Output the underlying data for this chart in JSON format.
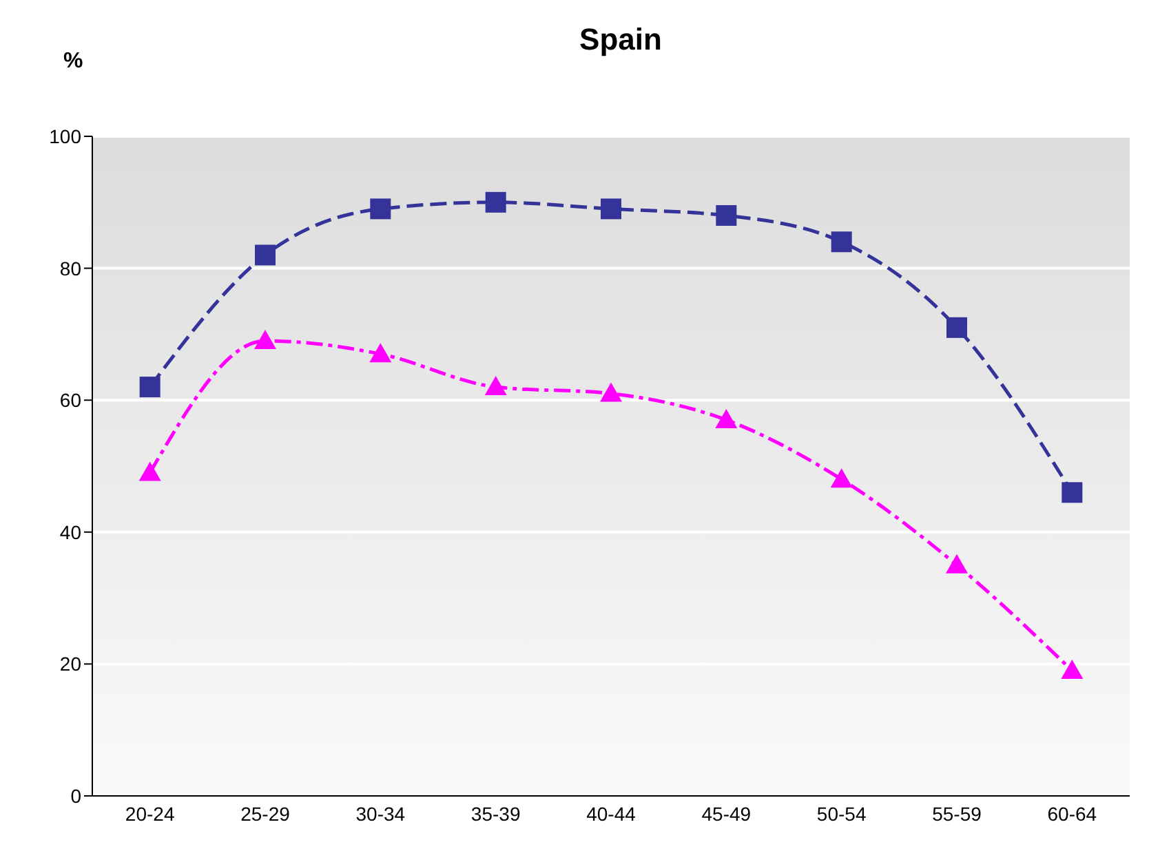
{
  "chart_data": {
    "type": "line",
    "title": "Spain",
    "ylabel": "%",
    "categories": [
      "20-24",
      "25-29",
      "30-34",
      "35-39",
      "40-44",
      "45-49",
      "50-54",
      "55-59",
      "60-64"
    ],
    "series": [
      {
        "color": "#333399",
        "values": [
          62,
          82,
          89,
          90,
          89,
          88,
          84,
          71,
          46
        ],
        "marker": "square",
        "line_style": "dashed"
      },
      {
        "color": "#ff00ff",
        "values": [
          49,
          69,
          67,
          62,
          61,
          57,
          48,
          35,
          19
        ],
        "marker": "triangle",
        "line_style": "dashdot"
      }
    ],
    "ylim": [
      0,
      100
    ],
    "yticks": [
      0,
      20,
      40,
      60,
      80,
      100
    ],
    "grid": "y"
  }
}
